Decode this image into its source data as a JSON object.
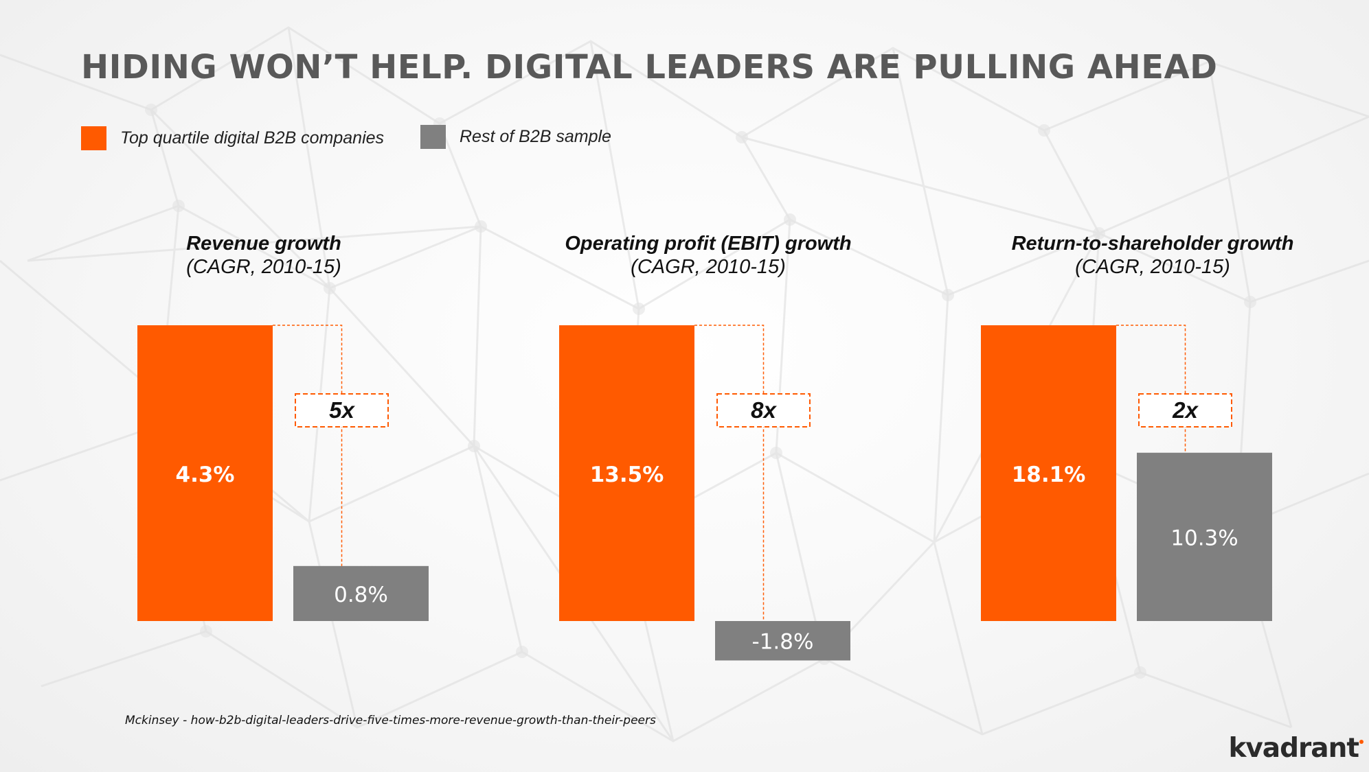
{
  "title": "HIDING WON’T HELP. DIGITAL LEADERS ARE PULLING AHEAD",
  "legend": {
    "top": {
      "label": "Top quartile digital B2B companies",
      "color": "#ff5a00"
    },
    "rest": {
      "label": "Rest of B2B sample",
      "color": "#808080"
    }
  },
  "source": "Mckinsey - how-b2b-digital-leaders-drive-five-times-more-revenue-growth-than-their-peers",
  "logo": "kvadrant",
  "chart_data": [
    {
      "type": "bar",
      "title": "Revenue growth",
      "subtitle": "(CAGR, 2010-15)",
      "series": [
        {
          "name": "Top quartile digital B2B companies",
          "value": 4.3,
          "label": "4.3%"
        },
        {
          "name": "Rest of B2B sample",
          "value": 0.8,
          "label": "0.8%"
        }
      ],
      "multiplier": "5x"
    },
    {
      "type": "bar",
      "title": "Operating profit (EBIT) growth",
      "subtitle": "(CAGR, 2010-15)",
      "series": [
        {
          "name": "Top quartile digital B2B companies",
          "value": 13.5,
          "label": "13.5%"
        },
        {
          "name": "Rest of B2B sample",
          "value": -1.8,
          "label": "-1.8%"
        }
      ],
      "multiplier": "8x"
    },
    {
      "type": "bar",
      "title": "Return-to-shareholder growth",
      "subtitle": "(CAGR, 2010-15)",
      "series": [
        {
          "name": "Top quartile digital B2B companies",
          "value": 18.1,
          "label": "18.1%"
        },
        {
          "name": "Rest of B2B sample",
          "value": 10.3,
          "label": "10.3%"
        }
      ],
      "multiplier": "2x"
    }
  ]
}
